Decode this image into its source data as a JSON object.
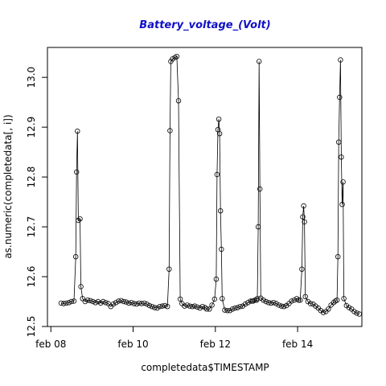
{
  "chart_data": {
    "type": "line",
    "title": "Battery_voltage_(Volt)",
    "xlabel": "completedata$TIMESTAMP",
    "ylabel": "as.numeric(completedata[, i])",
    "xlim": [
      "feb 07 22:00",
      "feb 15 13:30"
    ],
    "ylim": [
      12.5,
      13.06
    ],
    "x_ticks": [
      {
        "label": "feb 08",
        "day": 8
      },
      {
        "label": "feb 10",
        "day": 10
      },
      {
        "label": "feb 12",
        "day": 12
      },
      {
        "label": "feb 14",
        "day": 14
      }
    ],
    "y_ticks": [
      12.5,
      12.6,
      12.7,
      12.8,
      12.9,
      13.0
    ],
    "y_tick_labels": [
      "12.5",
      "12.6",
      "12.7",
      "12.8",
      "12.9",
      "13.0"
    ],
    "style": "overplotted points with connecting lines, open circle markers",
    "grid": false,
    "legend": "none",
    "series": [
      {
        "points": [
          [
            "feb 08 06:00",
            12.547
          ],
          [
            "feb 08 07:30",
            12.546
          ],
          [
            "feb 08 09:00",
            12.547
          ],
          [
            "feb 08 10:30",
            12.548
          ],
          [
            "feb 08 12:00",
            12.55
          ],
          [
            "feb 08 13:30",
            12.551
          ],
          [
            "feb 08 14:30",
            12.64
          ],
          [
            "feb 08 15:00",
            12.81
          ],
          [
            "feb 08 15:30",
            12.892
          ],
          [
            "feb 08 16:00",
            12.713
          ],
          [
            "feb 08 17:00",
            12.716
          ],
          [
            "feb 08 17:30",
            12.58
          ],
          [
            "feb 08 18:30",
            12.556
          ],
          [
            "feb 08 20:00",
            12.55
          ],
          [
            "feb 08 21:30",
            12.553
          ],
          [
            "feb 08 23:00",
            12.552
          ],
          [
            "feb 09 00:30",
            12.55
          ],
          [
            "feb 09 02:00",
            12.548
          ],
          [
            "feb 09 03:30",
            12.55
          ],
          [
            "feb 09 05:00",
            12.547
          ],
          [
            "feb 09 06:30",
            12.55
          ],
          [
            "feb 09 08:00",
            12.548
          ],
          [
            "feb 09 09:30",
            12.546
          ],
          [
            "feb 09 11:00",
            12.54
          ],
          [
            "feb 09 12:30",
            12.545
          ],
          [
            "feb 09 14:00",
            12.548
          ],
          [
            "feb 09 15:30",
            12.551
          ],
          [
            "feb 09 17:00",
            12.552
          ],
          [
            "feb 09 18:30",
            12.55
          ],
          [
            "feb 09 20:00",
            12.549
          ],
          [
            "feb 09 21:30",
            12.547
          ],
          [
            "feb 09 23:00",
            12.548
          ],
          [
            "feb 10 00:30",
            12.546
          ],
          [
            "feb 10 02:00",
            12.545
          ],
          [
            "feb 10 03:30",
            12.547
          ],
          [
            "feb 10 05:00",
            12.546
          ],
          [
            "feb 10 06:30",
            12.547
          ],
          [
            "feb 10 08:00",
            12.545
          ],
          [
            "feb 10 09:30",
            12.542
          ],
          [
            "feb 10 11:00",
            12.54
          ],
          [
            "feb 10 12:30",
            12.538
          ],
          [
            "feb 10 14:00",
            12.537
          ],
          [
            "feb 10 15:30",
            12.54
          ],
          [
            "feb 10 17:00",
            12.541
          ],
          [
            "feb 10 18:30",
            12.542
          ],
          [
            "feb 10 20:00",
            12.54
          ],
          [
            "feb 10 21:00",
            12.615
          ],
          [
            "feb 10 21:30",
            12.893
          ],
          [
            "feb 10 22:00",
            13.032
          ],
          [
            "feb 10 23:00",
            13.037
          ],
          [
            "feb 11 00:30",
            13.04
          ],
          [
            "feb 11 01:30",
            13.042
          ],
          [
            "feb 11 02:30",
            12.953
          ],
          [
            "feb 11 03:30",
            12.555
          ],
          [
            "feb 11 04:30",
            12.546
          ],
          [
            "feb 11 06:00",
            12.541
          ],
          [
            "feb 11 07:30",
            12.543
          ],
          [
            "feb 11 09:00",
            12.541
          ],
          [
            "feb 11 10:30",
            12.54
          ],
          [
            "feb 11 12:00",
            12.541
          ],
          [
            "feb 11 13:30",
            12.539
          ],
          [
            "feb 11 15:00",
            12.537
          ],
          [
            "feb 11 16:30",
            12.54
          ],
          [
            "feb 11 18:00",
            12.538
          ],
          [
            "feb 11 19:00",
            12.535
          ],
          [
            "feb 11 20:30",
            12.535
          ],
          [
            "feb 11 22:00",
            12.543
          ],
          [
            "feb 11 23:30",
            12.555
          ],
          [
            "feb 12 00:30",
            12.595
          ],
          [
            "feb 12 01:00",
            12.805
          ],
          [
            "feb 12 01:30",
            12.895
          ],
          [
            "feb 12 02:00",
            12.916
          ],
          [
            "feb 12 02:30",
            12.887
          ],
          [
            "feb 12 03:00",
            12.732
          ],
          [
            "feb 12 03:30",
            12.655
          ],
          [
            "feb 12 04:00",
            12.556
          ],
          [
            "feb 12 05:30",
            12.533
          ],
          [
            "feb 12 07:00",
            12.532
          ],
          [
            "feb 12 08:30",
            12.532
          ],
          [
            "feb 12 10:00",
            12.535
          ],
          [
            "feb 12 11:30",
            12.537
          ],
          [
            "feb 12 13:00",
            12.538
          ],
          [
            "feb 12 14:30",
            12.54
          ],
          [
            "feb 12 16:00",
            12.541
          ],
          [
            "feb 12 17:30",
            12.545
          ],
          [
            "feb 12 19:00",
            12.548
          ],
          [
            "feb 12 20:30",
            12.551
          ],
          [
            "feb 12 21:30",
            12.551
          ],
          [
            "feb 12 22:00",
            12.551
          ],
          [
            "feb 12 23:00",
            12.553
          ],
          [
            "feb 13 00:00",
            12.553
          ],
          [
            "feb 13 00:30",
            12.556
          ],
          [
            "feb 13 01:00",
            12.7
          ],
          [
            "feb 13 01:30",
            13.032
          ],
          [
            "feb 13 02:00",
            12.776
          ],
          [
            "feb 13 02:30",
            12.557
          ],
          [
            "feb 13 04:00",
            12.553
          ],
          [
            "feb 13 05:30",
            12.55
          ],
          [
            "feb 13 07:00",
            12.548
          ],
          [
            "feb 13 08:30",
            12.547
          ],
          [
            "feb 13 10:00",
            12.548
          ],
          [
            "feb 13 11:30",
            12.546
          ],
          [
            "feb 13 13:00",
            12.543
          ],
          [
            "feb 13 14:30",
            12.541
          ],
          [
            "feb 13 16:00",
            12.54
          ],
          [
            "feb 13 17:30",
            12.542
          ],
          [
            "feb 13 19:00",
            12.546
          ],
          [
            "feb 13 20:30",
            12.551
          ],
          [
            "feb 13 22:00",
            12.553
          ],
          [
            "feb 13 23:30",
            12.556
          ],
          [
            "feb 14 00:30",
            12.553
          ],
          [
            "feb 14 01:30",
            12.553
          ],
          [
            "feb 14 02:30",
            12.615
          ],
          [
            "feb 14 03:00",
            12.72
          ],
          [
            "feb 14 03:30",
            12.742
          ],
          [
            "feb 14 04:00",
            12.71
          ],
          [
            "feb 14 04:30",
            12.56
          ],
          [
            "feb 14 06:00",
            12.55
          ],
          [
            "feb 14 07:30",
            12.546
          ],
          [
            "feb 14 09:00",
            12.545
          ],
          [
            "feb 14 10:30",
            12.541
          ],
          [
            "feb 14 12:00",
            12.537
          ],
          [
            "feb 14 13:30",
            12.532
          ],
          [
            "feb 14 15:00",
            12.528
          ],
          [
            "feb 14 16:30",
            12.53
          ],
          [
            "feb 14 18:00",
            12.535
          ],
          [
            "feb 14 19:30",
            12.543
          ],
          [
            "feb 14 21:00",
            12.548
          ],
          [
            "feb 14 22:00",
            12.551
          ],
          [
            "feb 14 23:00",
            12.553
          ],
          [
            "feb 14 23:30",
            12.64
          ],
          [
            "feb 15 00:00",
            12.87
          ],
          [
            "feb 15 00:30",
            12.96
          ],
          [
            "feb 15 01:00",
            13.035
          ],
          [
            "feb 15 01:30",
            12.84
          ],
          [
            "feb 15 02:00",
            12.745
          ],
          [
            "feb 15 02:30",
            12.79
          ],
          [
            "feb 15 03:00",
            12.556
          ],
          [
            "feb 15 04:30",
            12.542
          ],
          [
            "feb 15 06:00",
            12.538
          ],
          [
            "feb 15 07:30",
            12.535
          ],
          [
            "feb 15 09:00",
            12.53
          ],
          [
            "feb 15 10:30",
            12.527
          ],
          [
            "feb 15 12:00",
            12.525
          ]
        ]
      }
    ]
  }
}
